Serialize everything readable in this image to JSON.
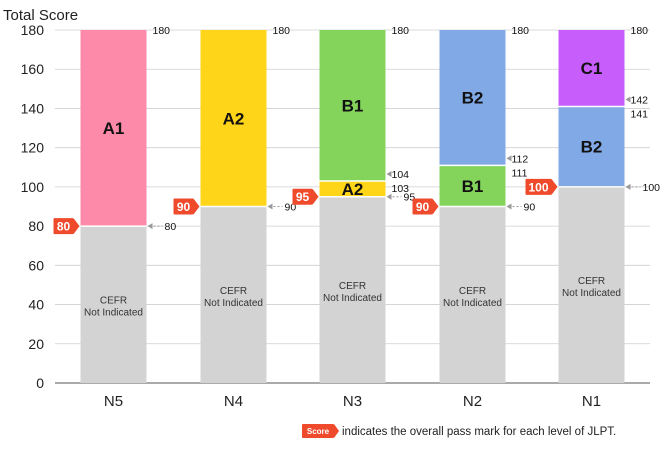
{
  "chart_data": {
    "type": "bar",
    "ylabel": "Total Score",
    "ylim": [
      0,
      180
    ],
    "yticks": [
      0,
      20,
      40,
      60,
      80,
      100,
      120,
      140,
      160,
      180
    ],
    "categories": [
      "N5",
      "N4",
      "N3",
      "N2",
      "N1"
    ],
    "colors": {
      "cefr_not_indicated": "#d3d3d3",
      "A1": "#fd8aa8",
      "A2": "#ffd519",
      "B1": "#84d45c",
      "B2": "#81a9e6",
      "C1": "#c75dfb",
      "pass_mark": "#f04a2c"
    },
    "cefr_not_indicated_label": [
      "CEFR",
      "Not Indicated"
    ],
    "bars": [
      {
        "category": "N5",
        "pass_mark": 80,
        "bands": [
          {
            "label": "CEFR Not Indicated",
            "from": 0,
            "to": 80,
            "color_key": "cefr_not_indicated"
          },
          {
            "label": "A1",
            "from": 80,
            "to": 180,
            "color_key": "A1"
          }
        ],
        "boundary_labels": [
          {
            "value": 180,
            "text": "180"
          },
          {
            "value": 80,
            "text": "80"
          }
        ]
      },
      {
        "category": "N4",
        "pass_mark": 90,
        "bands": [
          {
            "label": "CEFR Not Indicated",
            "from": 0,
            "to": 90,
            "color_key": "cefr_not_indicated"
          },
          {
            "label": "A2",
            "from": 90,
            "to": 180,
            "color_key": "A2"
          }
        ],
        "boundary_labels": [
          {
            "value": 180,
            "text": "180"
          },
          {
            "value": 90,
            "text": "90"
          }
        ]
      },
      {
        "category": "N3",
        "pass_mark": 95,
        "bands": [
          {
            "label": "CEFR Not Indicated",
            "from": 0,
            "to": 95,
            "color_key": "cefr_not_indicated"
          },
          {
            "label": "A2",
            "from": 95,
            "to": 103,
            "color_key": "A2"
          },
          {
            "label": "B1",
            "from": 103,
            "to": 180,
            "color_key": "B1"
          }
        ],
        "boundary_labels": [
          {
            "value": 180,
            "text": "180"
          },
          {
            "value": 104,
            "text": "104"
          },
          {
            "value": 103,
            "text": "103"
          },
          {
            "value": 95,
            "text": "95"
          }
        ]
      },
      {
        "category": "N2",
        "pass_mark": 90,
        "bands": [
          {
            "label": "CEFR Not Indicated",
            "from": 0,
            "to": 90,
            "color_key": "cefr_not_indicated"
          },
          {
            "label": "B1",
            "from": 90,
            "to": 111,
            "color_key": "B1"
          },
          {
            "label": "B2",
            "from": 111,
            "to": 180,
            "color_key": "B2"
          }
        ],
        "boundary_labels": [
          {
            "value": 180,
            "text": "180"
          },
          {
            "value": 112,
            "text": "112"
          },
          {
            "value": 111,
            "text": "111"
          },
          {
            "value": 90,
            "text": "90"
          }
        ]
      },
      {
        "category": "N1",
        "pass_mark": 100,
        "bands": [
          {
            "label": "CEFR Not Indicated",
            "from": 0,
            "to": 100,
            "color_key": "cefr_not_indicated"
          },
          {
            "label": "B2",
            "from": 100,
            "to": 141,
            "color_key": "B2"
          },
          {
            "label": "C1",
            "from": 141,
            "to": 180,
            "color_key": "C1"
          }
        ],
        "boundary_labels": [
          {
            "value": 180,
            "text": "180"
          },
          {
            "value": 142,
            "text": "142"
          },
          {
            "value": 141,
            "text": "141"
          },
          {
            "value": 100,
            "text": "100"
          }
        ]
      }
    ],
    "legend": {
      "badge_text": "Score",
      "text": "indicates the overall pass mark for each level of JLPT."
    }
  }
}
